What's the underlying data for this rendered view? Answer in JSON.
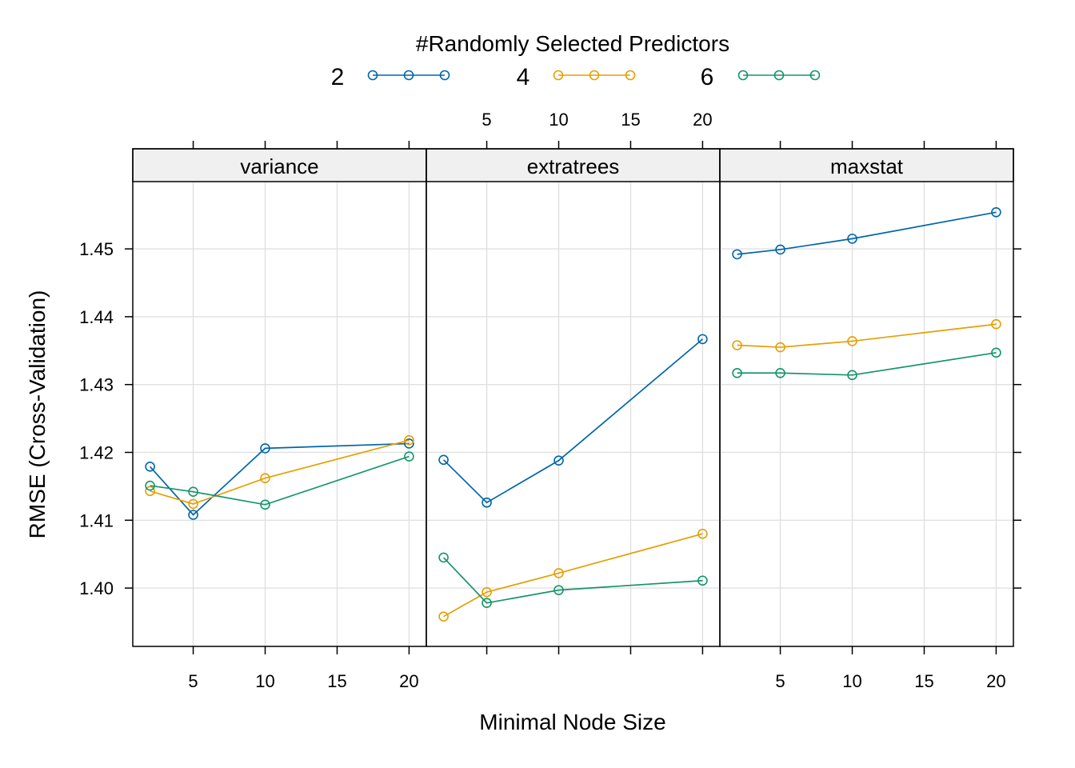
{
  "chart_data": {
    "type": "line",
    "legend": {
      "title": "#Randomly Selected Predictors",
      "placement": "top"
    },
    "xlabel": "Minimal Node Size",
    "ylabel": "RMSE (Cross-Validation)",
    "x": [
      2,
      5,
      10,
      20
    ],
    "xticks": [
      5,
      10,
      15,
      20
    ],
    "xlim": [
      0.8,
      21.2
    ],
    "yticks": [
      1.4,
      1.41,
      1.42,
      1.43,
      1.44,
      1.45
    ],
    "ytick_labels": [
      "1.40",
      "1.41",
      "1.42",
      "1.43",
      "1.44",
      "1.45"
    ],
    "ylim": [
      1.3914,
      1.4598
    ],
    "grid": true,
    "series_styles": [
      {
        "label": "2",
        "color": "#0066aa"
      },
      {
        "label": "4",
        "color": "#e69f00"
      },
      {
        "label": "6",
        "color": "#159568"
      }
    ],
    "panels": [
      {
        "strip": "variance",
        "series": [
          {
            "label": "2",
            "values": [
              1.4179,
              1.4108,
              1.4206,
              1.4213
            ]
          },
          {
            "label": "4",
            "values": [
              1.4143,
              1.4124,
              1.4162,
              1.4218
            ]
          },
          {
            "label": "6",
            "values": [
              1.4151,
              1.4142,
              1.4123,
              1.4194
            ]
          }
        ]
      },
      {
        "strip": "extratrees",
        "series": [
          {
            "label": "2",
            "values": [
              1.4189,
              1.4126,
              1.4188,
              1.4367
            ]
          },
          {
            "label": "4",
            "values": [
              1.3958,
              1.3994,
              1.4022,
              1.408
            ]
          },
          {
            "label": "6",
            "values": [
              1.4045,
              1.3978,
              1.3997,
              1.4011
            ]
          }
        ]
      },
      {
        "strip": "maxstat",
        "series": [
          {
            "label": "2",
            "values": [
              1.4492,
              1.4499,
              1.4515,
              1.4554
            ]
          },
          {
            "label": "4",
            "values": [
              1.4358,
              1.4355,
              1.4364,
              1.4389
            ]
          },
          {
            "label": "6",
            "values": [
              1.4317,
              1.4317,
              1.4314,
              1.4347
            ]
          }
        ]
      }
    ]
  }
}
